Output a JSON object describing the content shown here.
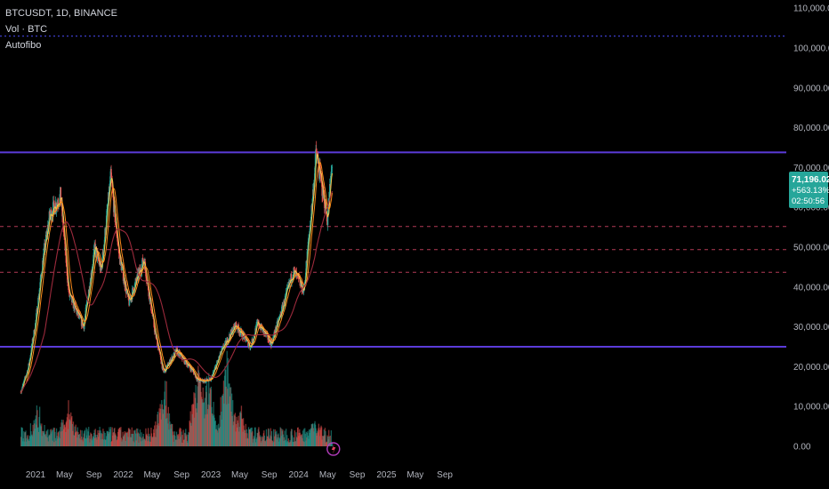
{
  "legend": {
    "symbol": "BTCUSDT, 1D, BINANCE",
    "volume": "Vol · BTC",
    "indicator": "Autofibo"
  },
  "price_badge": {
    "price": "71,196.02",
    "change": "+563.13%",
    "countdown": "02:50:56"
  },
  "colors": {
    "background": "#000000",
    "up": "#26a69a",
    "down": "#ef5350",
    "fibo_solid": "#5b3bd9",
    "fibo_dashed": "#b33b55",
    "top_dotted": "#3b3bbf",
    "ma_fast": "#f2c94c",
    "ma_mid": "#ff8c1a",
    "ma_slow": "#9c2a3c",
    "badge": "#26a69a"
  },
  "chart_data": {
    "type": "line",
    "instrument": "BTCUSDT",
    "interval": "1D",
    "exchange": "BINANCE",
    "y_axis": {
      "ticks": [
        "110,000.00",
        "100,000.00",
        "90,000.00",
        "80,000.00",
        "70,000.00",
        "60,000.00",
        "50,000.00",
        "40,000.00",
        "30,000.00",
        "20,000.00",
        "10,000.00",
        "0.00"
      ],
      "ylim": [
        0,
        113000
      ]
    },
    "x_axis": {
      "ticks": [
        "2021",
        "May",
        "Sep",
        "2022",
        "May",
        "Sep",
        "2023",
        "May",
        "Sep",
        "2024",
        "May",
        "Sep",
        "2025",
        "May",
        "Sep"
      ]
    },
    "price_series": [
      {
        "date": "2020-11-01",
        "value": 13800
      },
      {
        "date": "2020-12-01",
        "value": 19500
      },
      {
        "date": "2021-01-01",
        "value": 31000
      },
      {
        "date": "2021-02-01",
        "value": 47000
      },
      {
        "date": "2021-03-01",
        "value": 58000
      },
      {
        "date": "2021-04-15",
        "value": 63000
      },
      {
        "date": "2021-05-20",
        "value": 38000
      },
      {
        "date": "2021-07-20",
        "value": 30000
      },
      {
        "date": "2021-09-05",
        "value": 50000
      },
      {
        "date": "2021-10-01",
        "value": 44000
      },
      {
        "date": "2021-11-10",
        "value": 67500
      },
      {
        "date": "2021-12-15",
        "value": 48000
      },
      {
        "date": "2022-01-24",
        "value": 36000
      },
      {
        "date": "2022-03-28",
        "value": 47000
      },
      {
        "date": "2022-05-12",
        "value": 29000
      },
      {
        "date": "2022-06-18",
        "value": 18500
      },
      {
        "date": "2022-08-10",
        "value": 24000
      },
      {
        "date": "2022-10-15",
        "value": 19200
      },
      {
        "date": "2022-11-09",
        "value": 16500
      },
      {
        "date": "2022-12-30",
        "value": 16500
      },
      {
        "date": "2023-02-15",
        "value": 24000
      },
      {
        "date": "2023-04-14",
        "value": 30500
      },
      {
        "date": "2023-06-15",
        "value": 25000
      },
      {
        "date": "2023-07-15",
        "value": 31000
      },
      {
        "date": "2023-09-10",
        "value": 25800
      },
      {
        "date": "2023-10-25",
        "value": 34500
      },
      {
        "date": "2023-12-10",
        "value": 44000
      },
      {
        "date": "2024-01-23",
        "value": 39000
      },
      {
        "date": "2024-02-28",
        "value": 62000
      },
      {
        "date": "2024-03-14",
        "value": 73700
      },
      {
        "date": "2024-04-30",
        "value": 57000
      },
      {
        "date": "2024-05-20",
        "value": 71196
      }
    ],
    "volume_series": [
      {
        "date": "2021-01-10",
        "value": 0.2
      },
      {
        "date": "2021-05-19",
        "value": 0.24
      },
      {
        "date": "2022-06-18",
        "value": 0.5
      },
      {
        "date": "2022-11-09",
        "value": 0.62
      },
      {
        "date": "2022-12-20",
        "value": 0.55
      },
      {
        "date": "2023-03-10",
        "value": 0.75
      },
      {
        "date": "2023-05-01",
        "value": 0.2
      },
      {
        "date": "2024-03-05",
        "value": 0.1
      }
    ],
    "horizontal_levels": [
      {
        "price": 73800,
        "style": "solid"
      },
      {
        "price": 25000,
        "style": "solid"
      },
      {
        "price": 55200,
        "style": "dashed"
      },
      {
        "price": 49400,
        "style": "dashed"
      },
      {
        "price": 43700,
        "style": "dashed"
      },
      {
        "price": 103000,
        "style": "dotted"
      }
    ],
    "grid": false
  }
}
